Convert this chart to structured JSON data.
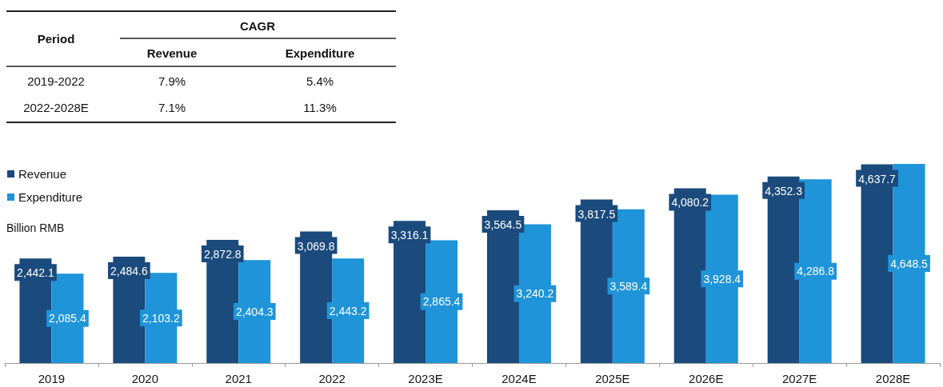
{
  "chart_data": {
    "type": "bar",
    "ylabel": "Billion RMB",
    "categories": [
      "2019",
      "2020",
      "2021",
      "2022",
      "2023E",
      "2024E",
      "2025E",
      "2026E",
      "2027E",
      "2028E"
    ],
    "series": [
      {
        "name": "Revenue",
        "color": "#1b4a7c",
        "values": [
          2442.1,
          2484.6,
          2872.8,
          3069.8,
          3316.1,
          3564.5,
          3817.5,
          4080.2,
          4352.3,
          4637.7
        ],
        "value_labels": [
          "2,442.1",
          "2,484.6",
          "2,872.8",
          "3,069.8",
          "3,316.1",
          "3,564.5",
          "3,817.5",
          "4,080.2",
          "4,352.3",
          "4,637.7"
        ]
      },
      {
        "name": "Expenditure",
        "color": "#1f94d8",
        "values": [
          2085.4,
          2103.2,
          2404.3,
          2443.2,
          2865.4,
          3240.2,
          3589.4,
          3928.4,
          4286.8,
          4648.5
        ],
        "value_labels": [
          "2,085.4",
          "2,103.2",
          "2,404.3",
          "2,443.2",
          "2,865.4",
          "3,240.2",
          "3,589.4",
          "3,928.4",
          "4,286.8",
          "4,648.5"
        ]
      }
    ],
    "legend": "top left",
    "annotations": [
      "Period",
      "CAGR",
      "Revenue",
      "Expenditure",
      "2019-2022",
      "7.9%",
      "5.4%",
      "2022-2028E",
      "7.1%",
      "11.3%"
    ]
  }
}
